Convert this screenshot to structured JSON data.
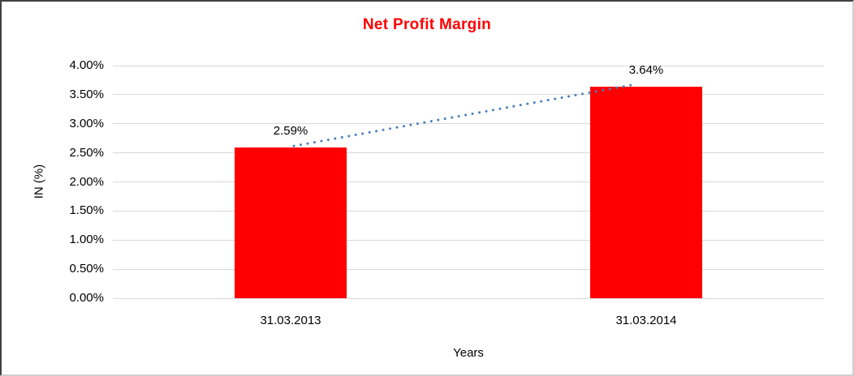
{
  "chart_data": {
    "type": "bar",
    "title": "Net Profit Margin",
    "title_color": "#ff0000",
    "categories": [
      "31.03.2013",
      "31.03.2014"
    ],
    "values": [
      2.59,
      3.64
    ],
    "data_labels": [
      "2.59%",
      "3.64%"
    ],
    "xlabel": "Years",
    "ylabel": "IN (%)",
    "ylim": [
      0,
      4
    ],
    "ytick_step": 0.5,
    "yticks": [
      "0.00%",
      "0.50%",
      "1.00%",
      "1.50%",
      "2.00%",
      "2.50%",
      "3.00%",
      "3.50%",
      "4.00%"
    ],
    "grid": true,
    "legend": false,
    "bar_color": "#ff0000",
    "trendline": {
      "type": "linear",
      "style": "dotted",
      "color": "#4a7ebd"
    }
  }
}
